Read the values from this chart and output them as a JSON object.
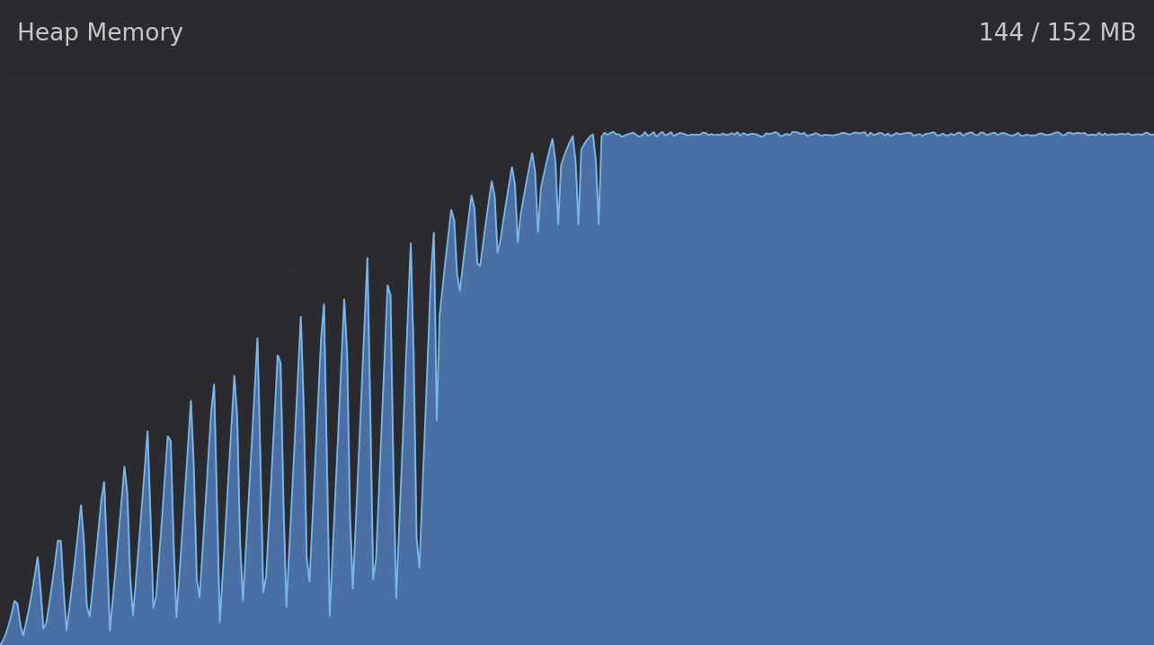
{
  "title_left": "Heap Memory",
  "title_right": "144 / 152 MB",
  "bg_color": "#2b2b2f",
  "plot_bg_color": "#2b2b2f",
  "fill_color": "#4a6fa5",
  "line_color": "#7ab8e8",
  "title_color": "#c8c8c8",
  "ylim": [
    0,
    152
  ],
  "max_memory": 152,
  "used_memory": 144,
  "flat_level": 137
}
